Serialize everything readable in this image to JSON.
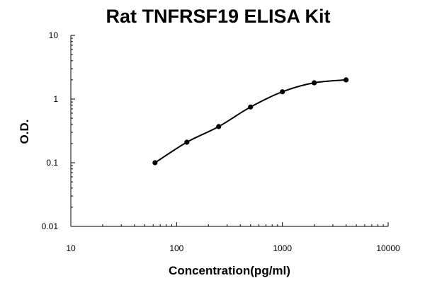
{
  "chart_data": {
    "type": "scatter",
    "title": "Rat TNFRSF19 ELISA Kit",
    "xlabel": "Concentration(pg/ml)",
    "ylabel": "O.D.",
    "x_scale": "log",
    "y_scale": "log",
    "xlim": [
      10,
      10000
    ],
    "ylim": [
      0.01,
      10
    ],
    "x_ticks": [
      "10",
      "100",
      "1000",
      "10000"
    ],
    "y_ticks": [
      "0.01",
      "0.1",
      "1",
      "10"
    ],
    "grid": false,
    "legend": "none",
    "series": [
      {
        "x": [
          62.5,
          125,
          250,
          500,
          1000,
          2000,
          4000
        ],
        "y": [
          0.1,
          0.21,
          0.37,
          0.75,
          1.3,
          1.8,
          2.0
        ],
        "marker_color": "#000000",
        "fit_curve": true
      }
    ]
  }
}
